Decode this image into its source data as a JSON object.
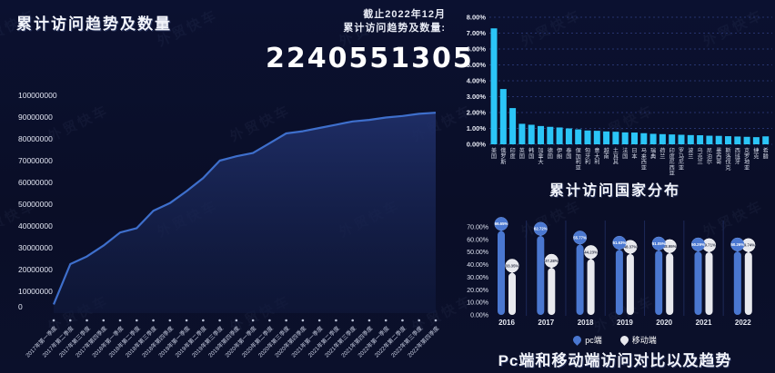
{
  "watermark": "外贸快车",
  "theme": {
    "background": "#0a0e27",
    "cyan_bar": "#2bc5f7",
    "pc_blue": "#4a77d0",
    "mobile_white": "#e8e9ee",
    "trend_line": "#3e6fcc"
  },
  "left_panel": {
    "title": "累计访问趋势及数量",
    "as_of": "截止2022年12月",
    "metric_label": "累计访问趋势及数量:",
    "total_visits": "2240551305"
  },
  "chart_data": [
    {
      "name": "cumulative-visit-trend",
      "type": "area",
      "title": "累计访问趋势及数量",
      "x": [
        "2017年第一季度",
        "2017年第二季度",
        "2017年第三季度",
        "2017年第四季度",
        "2018年第一季度",
        "2018年第二季度",
        "2018年第三季度",
        "2018年第四季度",
        "2019年第一季度",
        "2019年第二季度",
        "2019年第三季度",
        "2019年第四季度",
        "2020年第一季度",
        "2020年第二季度",
        "2020年第三季度",
        "2020年第四季度",
        "2021年第一季度",
        "2021年第二季度",
        "2021年第三季度",
        "2021年第四季度",
        "2022年第一季度",
        "2022年第二季度",
        "2022年第三季度",
        "2022年第四季度"
      ],
      "values": [
        4000000,
        22500000,
        26000000,
        31000000,
        37000000,
        39000000,
        47000000,
        50500000,
        56000000,
        62000000,
        70000000,
        72000000,
        73500000,
        78000000,
        82500000,
        83500000,
        85000000,
        86500000,
        88000000,
        88700000,
        89800000,
        90500000,
        91500000,
        92000000
      ],
      "ylim": [
        0,
        100000000
      ],
      "ytick_step": 10000000,
      "grid": false,
      "legend_position": "none"
    },
    {
      "name": "country-distribution",
      "type": "bar",
      "title": "累计访问国家分布",
      "categories": [
        "美国",
        "俄罗斯",
        "印度",
        "英国",
        "韩国",
        "加拿大",
        "德国",
        "伊朗",
        "泰国",
        "保加利亚",
        "匈牙利",
        "意大利",
        "越南",
        "土耳其",
        "法国",
        "日本",
        "马来西亚",
        "瑞典",
        "荷兰",
        "印度尼西亚",
        "罗马尼亚",
        "波兰",
        "乌克兰",
        "尼泊尔",
        "墨西哥",
        "斯洛伐克",
        "西班牙",
        "克罗地亚",
        "捷克",
        "希腊"
      ],
      "values": [
        7.3,
        3.48,
        2.28,
        1.29,
        1.23,
        1.15,
        1.1,
        1.06,
        1.0,
        0.94,
        0.87,
        0.85,
        0.81,
        0.79,
        0.75,
        0.74,
        0.7,
        0.66,
        0.64,
        0.62,
        0.6,
        0.58,
        0.57,
        0.54,
        0.53,
        0.51,
        0.49,
        0.47,
        0.45,
        0.5
      ],
      "ylim": [
        0,
        8
      ],
      "ytick_step": 1,
      "value_format": "percent",
      "grid": true,
      "legend_position": "none"
    },
    {
      "name": "pc-mobile-comparison",
      "type": "bar",
      "title": "Pc端和移动端访问对比以及趋势",
      "categories": [
        "2016",
        "2017",
        "2018",
        "2019",
        "2020",
        "2021",
        "2022"
      ],
      "series": [
        {
          "name": "pc端",
          "color": "#4a77d0",
          "values": [
            66.65,
            62.72,
            55.77,
            51.63,
            51.05,
            50.29,
            50.26
          ]
        },
        {
          "name": "移动端",
          "color": "#e8e9ee",
          "values": [
            33.35,
            37.28,
            44.23,
            48.37,
            48.95,
            49.71,
            49.74
          ]
        }
      ],
      "ylim": [
        0,
        70
      ],
      "ytick_step": 10,
      "value_format": "percent",
      "grid": false,
      "legend_position": "bottom"
    }
  ]
}
